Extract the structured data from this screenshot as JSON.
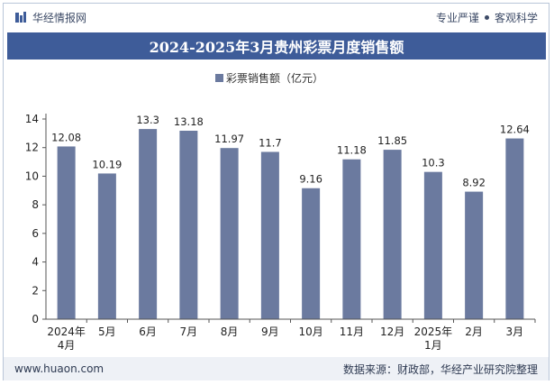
{
  "header": {
    "brand": "华经情报网",
    "slogan_left": "专业严谨",
    "slogan_right": "客观科学"
  },
  "footer": {
    "website": "www.huaon.com",
    "source": "数据来源：财政部，华经产业研究院整理"
  },
  "colors": {
    "bar": "#6b7a9f",
    "title_bg": "#3e5c99"
  },
  "chart_data": {
    "type": "bar",
    "title": "2024-2025年3月贵州彩票月度销售额",
    "categories": [
      "2024年4月",
      "5月",
      "6月",
      "7月",
      "8月",
      "9月",
      "10月",
      "11月",
      "12月",
      "2025年1月",
      "2月",
      "3月"
    ],
    "series": [
      {
        "name": "彩票销售额（亿元）",
        "values": [
          12.08,
          10.19,
          13.3,
          13.18,
          11.97,
          11.7,
          9.16,
          11.18,
          11.85,
          10.3,
          8.92,
          12.64
        ]
      }
    ],
    "value_labels": [
      "12.08",
      "10.19",
      "13.3",
      "13.18",
      "11.97",
      "11.7",
      "9.16",
      "11.18",
      "11.85",
      "10.3",
      "8.92",
      "12.64"
    ],
    "yticks": [
      0,
      2,
      4,
      6,
      8,
      10,
      12,
      14
    ],
    "ylim": [
      0,
      14
    ],
    "legend_position": "top-center",
    "grid": false
  }
}
